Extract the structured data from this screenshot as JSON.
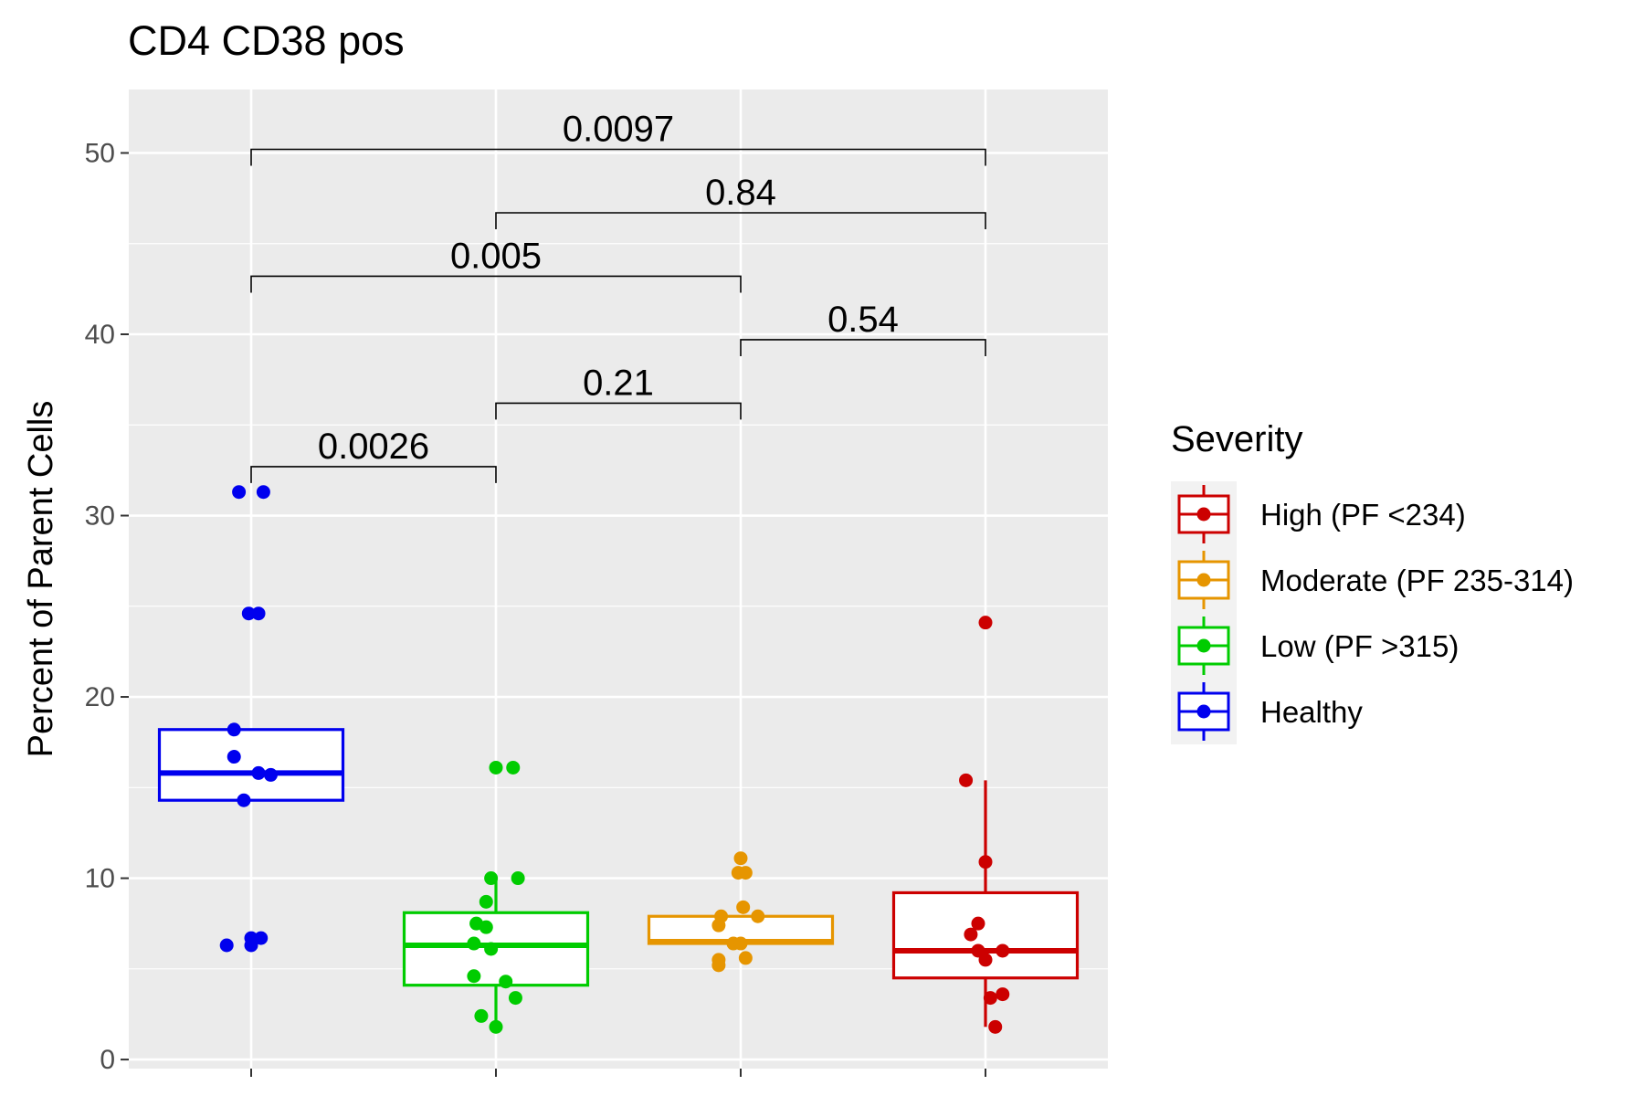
{
  "chart_data": {
    "type": "box",
    "title": "CD4 CD38 pos",
    "xlabel": "",
    "ylabel": "Percent of Parent Cells",
    "ylim": [
      -0.5,
      53.5
    ],
    "yticks": [
      0,
      10,
      20,
      30,
      40,
      50
    ],
    "grid": true,
    "legend": {
      "title": "Severity",
      "placement": "right",
      "entries": [
        {
          "label": "High (PF <234)",
          "color": "#cc0000"
        },
        {
          "label": "Moderate (PF 235-314)",
          "color": "#e69500"
        },
        {
          "label": "Low (PF >315)",
          "color": "#00cc00"
        },
        {
          "label": "Healthy",
          "color": "#0000ee"
        }
      ]
    },
    "groups": [
      {
        "name": "Healthy",
        "color": "#0000ee",
        "box": {
          "q1": 14.3,
          "median": 15.8,
          "q3": 18.2,
          "whisker_low": 14.3,
          "whisker_high": 18.2
        },
        "points": [
          [
            -0.05,
            31.3
          ],
          [
            0.05,
            31.3
          ],
          [
            -0.01,
            24.6
          ],
          [
            0.03,
            24.6
          ],
          [
            -0.07,
            18.2
          ],
          [
            -0.07,
            16.7
          ],
          [
            0.03,
            15.8
          ],
          [
            0.08,
            15.7
          ],
          [
            -0.03,
            14.3
          ],
          [
            -0.1,
            6.3
          ],
          [
            0.0,
            6.3
          ],
          [
            0.0,
            6.7
          ],
          [
            0.04,
            6.7
          ]
        ]
      },
      {
        "name": "Low (PF >315)",
        "color": "#00cc00",
        "box": {
          "q1": 4.1,
          "median": 6.3,
          "q3": 8.1,
          "whisker_low": 1.8,
          "whisker_high": 10.0
        },
        "points": [
          [
            0.0,
            16.1
          ],
          [
            0.07,
            16.1
          ],
          [
            -0.02,
            10.0
          ],
          [
            0.09,
            10.0
          ],
          [
            -0.04,
            8.7
          ],
          [
            -0.08,
            7.5
          ],
          [
            -0.04,
            7.3
          ],
          [
            -0.09,
            6.4
          ],
          [
            -0.02,
            6.1
          ],
          [
            -0.09,
            4.6
          ],
          [
            0.04,
            4.3
          ],
          [
            0.08,
            3.4
          ],
          [
            -0.06,
            2.4
          ],
          [
            0.0,
            1.8
          ]
        ]
      },
      {
        "name": "Moderate (PF 235-314)",
        "color": "#e69500",
        "box": {
          "q1": 6.4,
          "median": 6.5,
          "q3": 7.9,
          "whisker_low": 6.4,
          "whisker_high": 7.9
        },
        "points": [
          [
            0.0,
            11.1
          ],
          [
            -0.01,
            10.3
          ],
          [
            0.02,
            10.3
          ],
          [
            0.01,
            8.4
          ],
          [
            0.07,
            7.9
          ],
          [
            -0.08,
            7.9
          ],
          [
            -0.09,
            7.4
          ],
          [
            -0.03,
            6.4
          ],
          [
            0.0,
            6.4
          ],
          [
            0.02,
            5.6
          ],
          [
            -0.09,
            5.5
          ],
          [
            -0.09,
            5.2
          ]
        ]
      },
      {
        "name": "High (PF <234)",
        "color": "#cc0000",
        "box": {
          "q1": 4.5,
          "median": 6.0,
          "q3": 9.2,
          "whisker_low": 1.8,
          "whisker_high": 15.4
        },
        "points": [
          [
            0.0,
            24.1
          ],
          [
            -0.08,
            15.4
          ],
          [
            0.0,
            10.9
          ],
          [
            -0.03,
            7.5
          ],
          [
            -0.06,
            6.9
          ],
          [
            -0.03,
            6.0
          ],
          [
            0.07,
            6.0
          ],
          [
            0.0,
            5.5
          ],
          [
            0.07,
            3.6
          ],
          [
            0.02,
            3.4
          ],
          [
            0.04,
            1.8
          ]
        ]
      }
    ],
    "comparisons": [
      {
        "from": 1,
        "to": 2,
        "y": 32.7,
        "label": "0.0026"
      },
      {
        "from": 2,
        "to": 3,
        "y": 36.2,
        "label": "0.21"
      },
      {
        "from": 3,
        "to": 4,
        "y": 39.7,
        "label": "0.54"
      },
      {
        "from": 1,
        "to": 3,
        "y": 43.2,
        "label": "0.005"
      },
      {
        "from": 2,
        "to": 4,
        "y": 46.7,
        "label": "0.84"
      },
      {
        "from": 1,
        "to": 4,
        "y": 50.2,
        "label": "0.0097"
      }
    ]
  }
}
